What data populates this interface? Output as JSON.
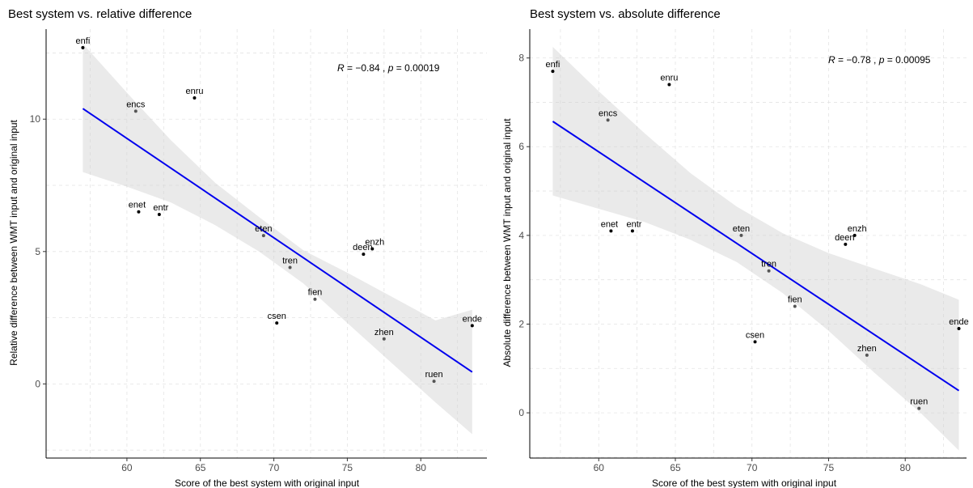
{
  "chart_data": [
    {
      "type": "scatter",
      "title": "Best system vs. relative difference",
      "xlabel": "Score of the best system with original input",
      "ylabel": "Relative difference between WMT input and original input",
      "xlim": [
        54.5,
        84.5
      ],
      "ylim": [
        -2.8,
        13.4
      ],
      "xticks": [
        60,
        65,
        70,
        75,
        80
      ],
      "yticks": [
        0,
        5,
        10
      ],
      "grid": true,
      "annotation": {
        "R": "−0.84",
        "p": "0.00019"
      },
      "points": [
        {
          "label": "enfi",
          "x": 57.0,
          "y": 12.7,
          "color": "#000000"
        },
        {
          "label": "encs",
          "x": 60.6,
          "y": 10.3,
          "color": "#555555"
        },
        {
          "label": "enru",
          "x": 64.6,
          "y": 10.8,
          "color": "#000000"
        },
        {
          "label": "enet",
          "x": 60.8,
          "y": 6.5,
          "color": "#000000"
        },
        {
          "label": "entr",
          "x": 62.2,
          "y": 6.4,
          "color": "#000000"
        },
        {
          "label": "eten",
          "x": 69.3,
          "y": 5.6,
          "color": "#555555"
        },
        {
          "label": "tren",
          "x": 71.1,
          "y": 4.4,
          "color": "#555555"
        },
        {
          "label": "deen",
          "x": 76.1,
          "y": 4.9,
          "color": "#000000"
        },
        {
          "label": "enzh",
          "x": 76.7,
          "y": 5.1,
          "color": "#000000"
        },
        {
          "label": "fien",
          "x": 72.8,
          "y": 3.2,
          "color": "#555555"
        },
        {
          "label": "csen",
          "x": 70.2,
          "y": 2.3,
          "color": "#000000"
        },
        {
          "label": "zhen",
          "x": 77.5,
          "y": 1.7,
          "color": "#555555"
        },
        {
          "label": "ende",
          "x": 83.5,
          "y": 2.2,
          "color": "#000000"
        },
        {
          "label": "ruen",
          "x": 80.9,
          "y": 0.1,
          "color": "#555555"
        }
      ],
      "fit": {
        "x": [
          57.0,
          60.0,
          63.0,
          66.0,
          69.0,
          72.0,
          75.0,
          78.0,
          81.0,
          83.5
        ],
        "y": [
          10.4,
          9.21,
          8.02,
          6.83,
          5.64,
          4.45,
          3.26,
          2.07,
          0.88,
          0.45
        ],
        "lower": [
          8.0,
          7.45,
          6.85,
          6.0,
          5.0,
          3.8,
          2.3,
          0.8,
          -0.7,
          -1.9
        ],
        "upper": [
          12.85,
          11.0,
          9.2,
          7.6,
          6.3,
          5.05,
          4.2,
          3.3,
          2.4,
          2.8
        ],
        "color": "#0000ee"
      }
    },
    {
      "type": "scatter",
      "title": "Best system vs. absolute difference",
      "xlabel": "Score of the best system with original input",
      "ylabel": "Absolute difference between WMT input and original input",
      "xlim": [
        55.5,
        84.0
      ],
      "ylim": [
        -1.02,
        8.65
      ],
      "xticks": [
        60,
        65,
        70,
        75,
        80
      ],
      "yticks": [
        0,
        2,
        4,
        6,
        8
      ],
      "grid": true,
      "annotation": {
        "R": "−0.78",
        "p": "0.00095"
      },
      "points": [
        {
          "label": "enfi",
          "x": 57.0,
          "y": 7.7,
          "color": "#000000"
        },
        {
          "label": "encs",
          "x": 60.6,
          "y": 6.6,
          "color": "#555555"
        },
        {
          "label": "enru",
          "x": 64.6,
          "y": 7.4,
          "color": "#000000"
        },
        {
          "label": "enet",
          "x": 60.8,
          "y": 4.1,
          "color": "#000000"
        },
        {
          "label": "entr",
          "x": 62.2,
          "y": 4.1,
          "color": "#000000"
        },
        {
          "label": "eten",
          "x": 69.3,
          "y": 4.0,
          "color": "#555555"
        },
        {
          "label": "tren",
          "x": 71.1,
          "y": 3.2,
          "color": "#555555"
        },
        {
          "label": "deen",
          "x": 76.1,
          "y": 3.8,
          "color": "#000000"
        },
        {
          "label": "enzh",
          "x": 76.7,
          "y": 4.0,
          "color": "#000000"
        },
        {
          "label": "fien",
          "x": 72.8,
          "y": 2.4,
          "color": "#555555"
        },
        {
          "label": "csen",
          "x": 70.2,
          "y": 1.6,
          "color": "#000000"
        },
        {
          "label": "zhen",
          "x": 77.5,
          "y": 1.3,
          "color": "#555555"
        },
        {
          "label": "ende",
          "x": 83.5,
          "y": 1.9,
          "color": "#000000"
        },
        {
          "label": "ruen",
          "x": 80.9,
          "y": 0.1,
          "color": "#555555"
        }
      ],
      "fit": {
        "x": [
          57.0,
          60.0,
          63.0,
          66.0,
          69.0,
          72.0,
          75.0,
          78.0,
          81.0,
          83.5
        ],
        "y": [
          6.57,
          5.93,
          5.29,
          4.65,
          4.01,
          3.37,
          2.73,
          2.09,
          1.45,
          0.5
        ],
        "lower": [
          4.9,
          4.6,
          4.3,
          3.9,
          3.4,
          2.7,
          1.85,
          0.9,
          0.0,
          -0.85
        ],
        "upper": [
          8.25,
          7.25,
          6.3,
          5.4,
          4.65,
          4.05,
          3.6,
          3.25,
          2.9,
          2.55
        ],
        "color": "#0000ee"
      }
    }
  ]
}
